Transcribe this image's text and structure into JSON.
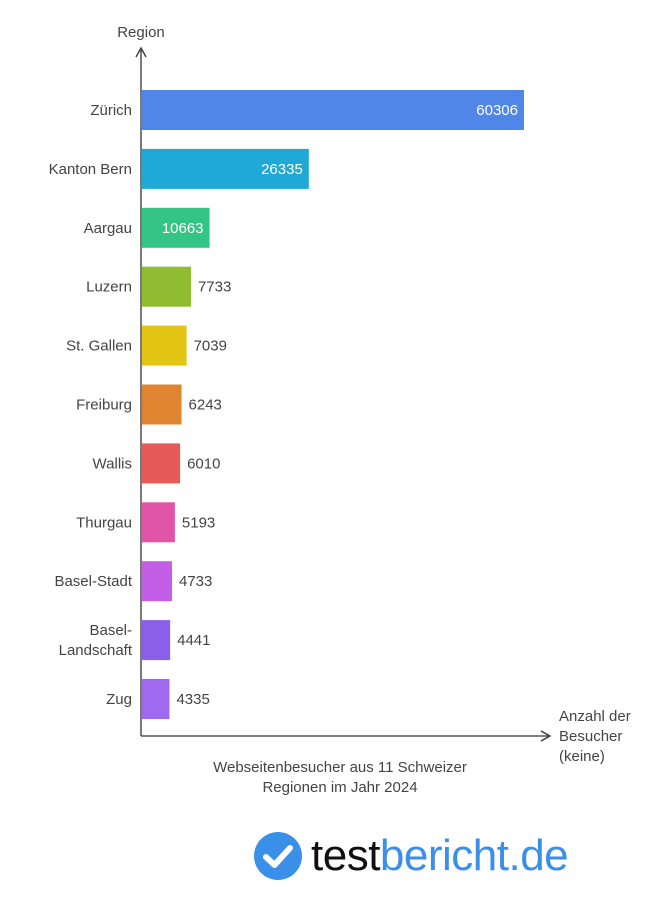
{
  "chart_data": {
    "type": "bar",
    "orientation": "horizontal",
    "ylabel": "Region",
    "xlabel": "Anzahl der Besucher (keine)",
    "categories": [
      "Zürich",
      "Kanton Bern",
      "Aargau",
      "Luzern",
      "St. Gallen",
      "Freiburg",
      "Wallis",
      "Thurgau",
      "Basel-Stadt",
      "Basel-Landschaft",
      "Zug"
    ],
    "category_lines": [
      [
        "Zürich"
      ],
      [
        "Kanton Bern"
      ],
      [
        "Aargau"
      ],
      [
        "Luzern"
      ],
      [
        "St. Gallen"
      ],
      [
        "Freiburg"
      ],
      [
        "Wallis"
      ],
      [
        "Thurgau"
      ],
      [
        "Basel-Stadt"
      ],
      [
        "Basel-",
        "Landschaft"
      ],
      [
        "Zug"
      ]
    ],
    "values": [
      60306,
      26335,
      10663,
      7733,
      7039,
      6243,
      6010,
      5193,
      4733,
      4441,
      4335
    ],
    "colors": [
      "#4f86e8",
      "#1fa9d8",
      "#34c486",
      "#8fbc30",
      "#e2c413",
      "#df8430",
      "#e65a58",
      "#e055a6",
      "#c35fe6",
      "#8a60ea",
      "#a06af0"
    ],
    "xlim": [
      0,
      60306
    ],
    "grid": false,
    "legend": "none",
    "caption": "Webseitenbesucher aus 11 Schweizer Regionen im Jahr 2024"
  },
  "xaxis_label_lines": [
    "Anzahl der",
    "Besucher",
    "(keine)"
  ],
  "caption_lines": [
    "Webseitenbesucher aus 11 Schweizer",
    "Regionen im Jahr 2024"
  ],
  "brand": {
    "part1": "test",
    "part2": "bericht.de",
    "icon": "checkmark-circle-icon",
    "color": "#3a8fe8"
  }
}
